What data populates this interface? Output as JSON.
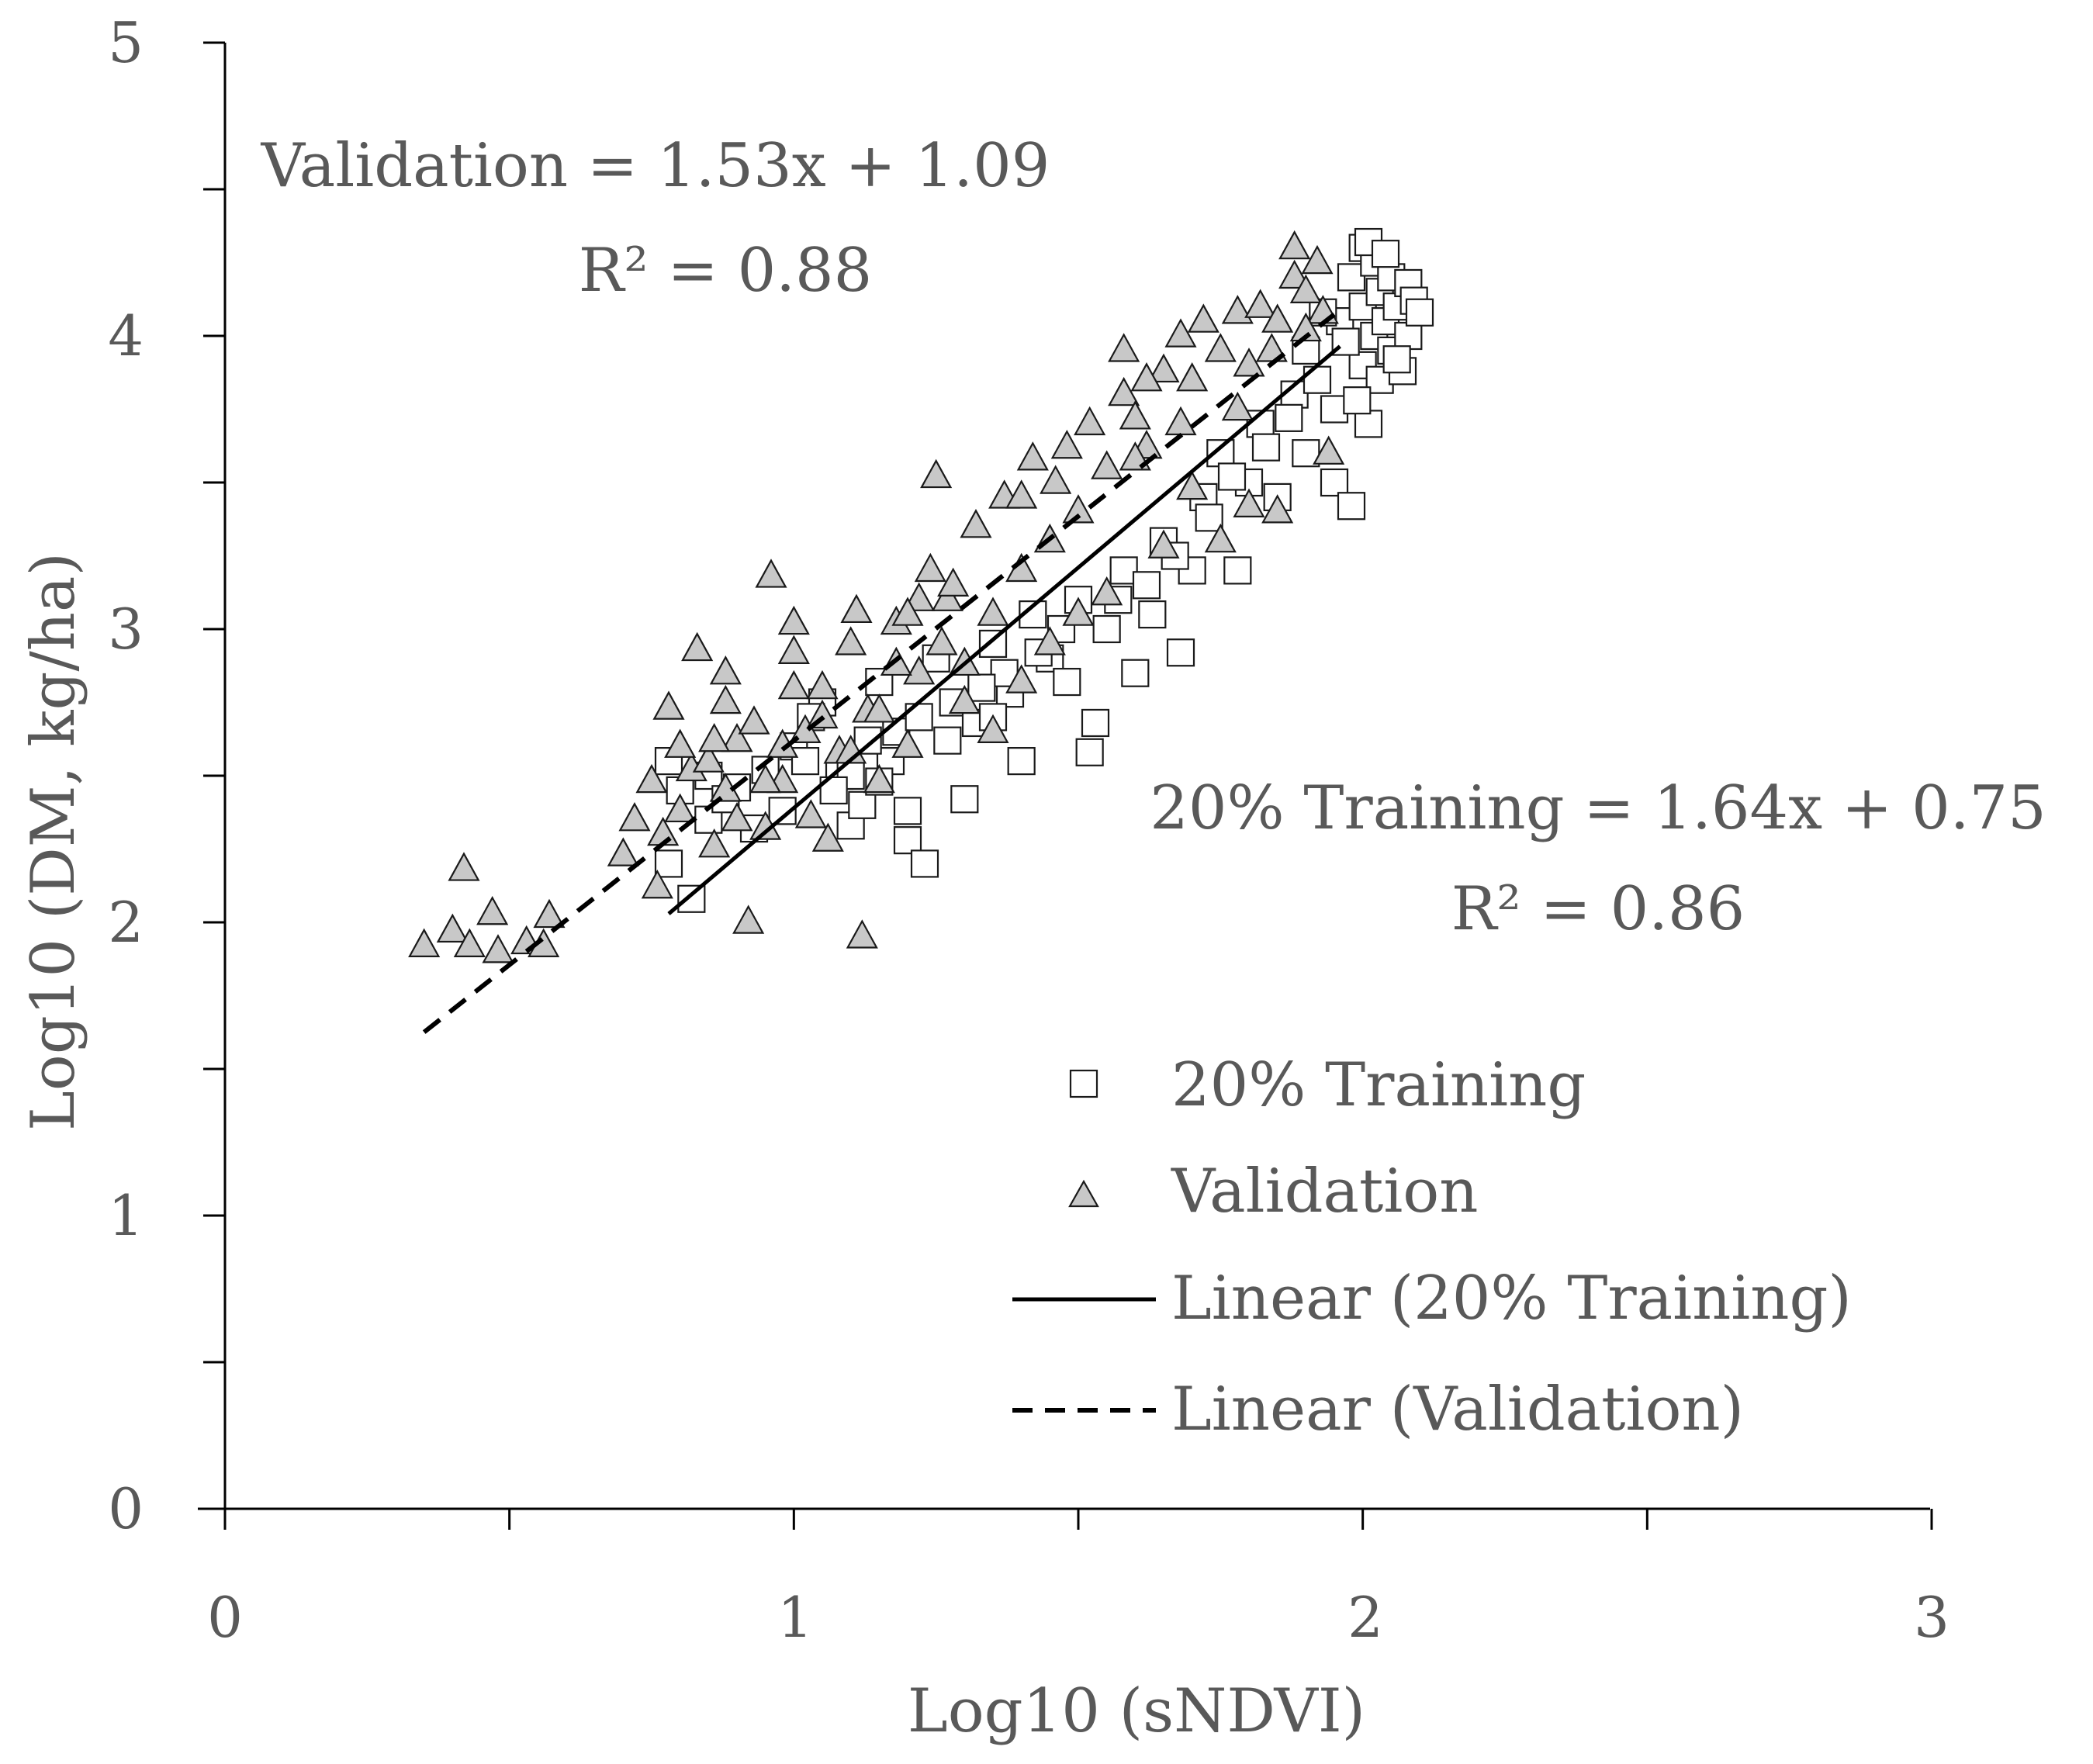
{
  "chart_data": {
    "type": "scatter",
    "title": "",
    "xlabel": "Log10 (sNDVI)",
    "ylabel": "Log10 (DM, kg/ha)",
    "xlim": [
      0,
      3
    ],
    "ylim": [
      0,
      5
    ],
    "x_ticks": [
      "0",
      "1",
      "2",
      "3"
    ],
    "y_ticks": [
      "0",
      "1",
      "2",
      "3",
      "4",
      "5"
    ],
    "grid": false,
    "legend_position": "bottom-right",
    "colors": {
      "training_fill": "#ffffff",
      "validation_fill": "#c8c8c8",
      "stroke": "#1a1a1a",
      "text": "#595959"
    },
    "annotations": [
      {
        "name": "validation-equation",
        "text": "Validation = 1.53x + 1.09"
      },
      {
        "name": "validation-r2",
        "text": "R² = 0.88"
      },
      {
        "name": "training-equation",
        "text": "20% Training = 1.64x + 0.75"
      },
      {
        "name": "training-r2",
        "text": "R² = 0.86"
      }
    ],
    "legend": [
      {
        "name": "legend-training",
        "label": "20% Training",
        "marker": "square"
      },
      {
        "name": "legend-validation",
        "label": "Validation",
        "marker": "triangle"
      },
      {
        "name": "legend-linear-training",
        "label": "Linear (20% Training)",
        "marker": "solid-line"
      },
      {
        "name": "legend-linear-validation",
        "label": "Linear (Validation)",
        "marker": "dashed-line"
      }
    ],
    "trendlines": [
      {
        "series": "20% Training",
        "slope": 1.64,
        "intercept": 0.75,
        "x_range": [
          0.78,
          1.96
        ],
        "style": "solid"
      },
      {
        "series": "Validation",
        "slope": 1.53,
        "intercept": 1.09,
        "x_range": [
          0.35,
          1.95
        ],
        "style": "dashed"
      }
    ],
    "series": [
      {
        "name": "20% Training",
        "marker": "square",
        "points": [
          [
            0.78,
            2.55
          ],
          [
            0.78,
            2.2
          ],
          [
            0.8,
            2.45
          ],
          [
            0.82,
            2.08
          ],
          [
            0.85,
            2.35
          ],
          [
            0.85,
            2.5
          ],
          [
            0.88,
            2.42
          ],
          [
            0.9,
            2.46
          ],
          [
            0.95,
            2.52
          ],
          [
            0.98,
            2.38
          ],
          [
            1.0,
            2.6
          ],
          [
            1.02,
            2.55
          ],
          [
            1.05,
            2.75
          ],
          [
            1.08,
            2.5
          ],
          [
            1.1,
            2.33
          ],
          [
            1.1,
            2.5
          ],
          [
            1.12,
            2.4
          ],
          [
            1.15,
            2.82
          ],
          [
            1.18,
            2.65
          ],
          [
            1.2,
            2.38
          ],
          [
            1.2,
            2.28
          ],
          [
            1.22,
            2.7
          ],
          [
            1.23,
            2.2
          ],
          [
            1.25,
            2.9
          ],
          [
            1.28,
            2.75
          ],
          [
            1.3,
            2.42
          ],
          [
            1.32,
            2.68
          ],
          [
            1.35,
            2.95
          ],
          [
            1.38,
            2.78
          ],
          [
            1.4,
            2.55
          ],
          [
            1.42,
            3.05
          ],
          [
            1.45,
            2.9
          ],
          [
            1.48,
            2.82
          ],
          [
            1.5,
            3.1
          ],
          [
            1.52,
            2.58
          ],
          [
            1.53,
            2.68
          ],
          [
            1.55,
            3.0
          ],
          [
            1.58,
            3.2
          ],
          [
            1.6,
            2.85
          ],
          [
            1.62,
            3.15
          ],
          [
            1.65,
            3.3
          ],
          [
            1.68,
            2.92
          ],
          [
            1.7,
            3.2
          ],
          [
            1.72,
            3.45
          ],
          [
            1.75,
            3.6
          ],
          [
            1.78,
            3.2
          ],
          [
            1.8,
            3.5
          ],
          [
            1.82,
            3.7
          ],
          [
            1.85,
            3.45
          ],
          [
            1.88,
            3.8
          ],
          [
            1.9,
            3.6
          ],
          [
            1.92,
            3.85
          ],
          [
            1.95,
            3.75
          ],
          [
            1.95,
            3.5
          ],
          [
            1.96,
            4.05
          ],
          [
            1.98,
            3.42
          ],
          [
            1.98,
            4.2
          ],
          [
            2.0,
            3.9
          ],
          [
            2.0,
            4.3
          ],
          [
            2.0,
            4.1
          ],
          [
            2.01,
            3.7
          ],
          [
            2.02,
            4.0
          ],
          [
            2.02,
            4.25
          ],
          [
            2.03,
            3.85
          ],
          [
            2.03,
            4.15
          ],
          [
            2.04,
            4.05
          ],
          [
            2.05,
            3.95
          ],
          [
            2.05,
            4.2
          ],
          [
            2.06,
            4.1
          ],
          [
            2.07,
            3.88
          ],
          [
            2.08,
            4.18
          ],
          [
            2.08,
            4.0
          ],
          [
            2.09,
            4.12
          ],
          [
            2.1,
            4.08
          ],
          [
            2.01,
            4.32
          ],
          [
            2.04,
            4.28
          ],
          [
            1.99,
            3.78
          ],
          [
            2.06,
            3.92
          ],
          [
            1.97,
            3.98
          ],
          [
            1.93,
            4.08
          ],
          [
            1.9,
            3.95
          ],
          [
            1.87,
            3.72
          ],
          [
            1.83,
            3.62
          ],
          [
            1.77,
            3.52
          ],
          [
            1.73,
            3.38
          ],
          [
            1.67,
            3.25
          ],
          [
            1.63,
            3.05
          ],
          [
            1.57,
            3.1
          ],
          [
            1.47,
            3.0
          ],
          [
            1.43,
            2.92
          ],
          [
            1.37,
            2.85
          ],
          [
            1.33,
            2.8
          ],
          [
            1.27,
            2.62
          ],
          [
            1.17,
            2.55
          ],
          [
            1.13,
            2.62
          ],
          [
            1.07,
            2.45
          ],
          [
            1.03,
            2.7
          ],
          [
            0.93,
            2.32
          ],
          [
            1.15,
            2.48
          ],
          [
            1.35,
            2.7
          ]
        ]
      },
      {
        "name": "Validation",
        "marker": "triangle",
        "points": [
          [
            0.35,
            1.92
          ],
          [
            0.4,
            1.97
          ],
          [
            0.42,
            2.18
          ],
          [
            0.43,
            1.92
          ],
          [
            0.47,
            2.03
          ],
          [
            0.48,
            1.9
          ],
          [
            0.53,
            1.93
          ],
          [
            0.56,
            1.92
          ],
          [
            0.57,
            2.02
          ],
          [
            0.7,
            2.23
          ],
          [
            0.72,
            2.35
          ],
          [
            0.75,
            2.48
          ],
          [
            0.76,
            2.12
          ],
          [
            0.78,
            2.73
          ],
          [
            0.8,
            2.38
          ],
          [
            0.82,
            2.52
          ],
          [
            0.83,
            2.93
          ],
          [
            0.85,
            2.55
          ],
          [
            0.86,
            2.26
          ],
          [
            0.88,
            2.85
          ],
          [
            0.88,
            2.75
          ],
          [
            0.9,
            2.62
          ],
          [
            0.9,
            2.35
          ],
          [
            0.92,
            2.0
          ],
          [
            0.95,
            2.32
          ],
          [
            0.96,
            3.18
          ],
          [
            0.98,
            2.48
          ],
          [
            1.0,
            3.02
          ],
          [
            1.0,
            2.92
          ],
          [
            1.02,
            2.65
          ],
          [
            1.03,
            2.36
          ],
          [
            1.05,
            2.8
          ],
          [
            1.06,
            2.28
          ],
          [
            1.08,
            2.58
          ],
          [
            1.1,
            2.95
          ],
          [
            1.11,
            3.06
          ],
          [
            1.12,
            1.95
          ],
          [
            1.13,
            2.72
          ],
          [
            1.15,
            2.48
          ],
          [
            1.18,
            3.02
          ],
          [
            1.2,
            2.6
          ],
          [
            1.22,
            2.85
          ],
          [
            1.24,
            3.2
          ],
          [
            1.25,
            3.52
          ],
          [
            1.27,
            3.1
          ],
          [
            1.3,
            2.88
          ],
          [
            1.32,
            3.35
          ],
          [
            1.35,
            3.05
          ],
          [
            1.37,
            3.45
          ],
          [
            1.4,
            3.2
          ],
          [
            1.42,
            3.58
          ],
          [
            1.45,
            3.3
          ],
          [
            1.48,
            3.62
          ],
          [
            1.5,
            3.4
          ],
          [
            1.52,
            3.7
          ],
          [
            1.55,
            3.55
          ],
          [
            1.58,
            3.95
          ],
          [
            1.58,
            3.8
          ],
          [
            1.6,
            3.72
          ],
          [
            1.62,
            3.62
          ],
          [
            1.65,
            3.88
          ],
          [
            1.68,
            4.0
          ],
          [
            1.7,
            3.85
          ],
          [
            1.72,
            4.05
          ],
          [
            1.75,
            3.95
          ],
          [
            1.78,
            4.08
          ],
          [
            1.8,
            3.9
          ],
          [
            1.82,
            4.1
          ],
          [
            1.85,
            4.05
          ],
          [
            1.88,
            4.3
          ],
          [
            1.88,
            4.2
          ],
          [
            1.9,
            4.15
          ],
          [
            1.92,
            4.25
          ],
          [
            1.93,
            4.08
          ],
          [
            1.94,
            3.6
          ],
          [
            1.85,
            3.4
          ],
          [
            1.8,
            3.42
          ],
          [
            1.75,
            3.3
          ],
          [
            1.7,
            3.48
          ],
          [
            1.65,
            3.28
          ],
          [
            1.6,
            3.58
          ],
          [
            1.55,
            3.12
          ],
          [
            1.5,
            3.05
          ],
          [
            1.45,
            2.95
          ],
          [
            1.4,
            2.82
          ],
          [
            1.35,
            2.65
          ],
          [
            1.3,
            2.75
          ],
          [
            1.28,
            3.15
          ],
          [
            1.22,
            3.1
          ],
          [
            1.18,
            2.88
          ],
          [
            1.15,
            2.72
          ],
          [
            1.1,
            2.58
          ],
          [
            1.05,
            2.7
          ],
          [
            0.98,
            2.6
          ],
          [
            0.95,
            2.48
          ],
          [
            0.93,
            2.68
          ],
          [
            0.88,
            2.45
          ],
          [
            0.86,
            2.62
          ],
          [
            0.8,
            2.6
          ],
          [
            0.77,
            2.3
          ],
          [
            1.0,
            2.8
          ],
          [
            1.2,
            3.05
          ],
          [
            1.4,
            3.45
          ],
          [
            1.62,
            3.85
          ],
          [
            1.78,
            3.75
          ],
          [
            1.84,
            3.95
          ],
          [
            1.9,
            4.02
          ],
          [
            1.68,
            3.7
          ],
          [
            1.46,
            3.5
          ],
          [
            1.26,
            2.95
          ]
        ]
      }
    ]
  }
}
